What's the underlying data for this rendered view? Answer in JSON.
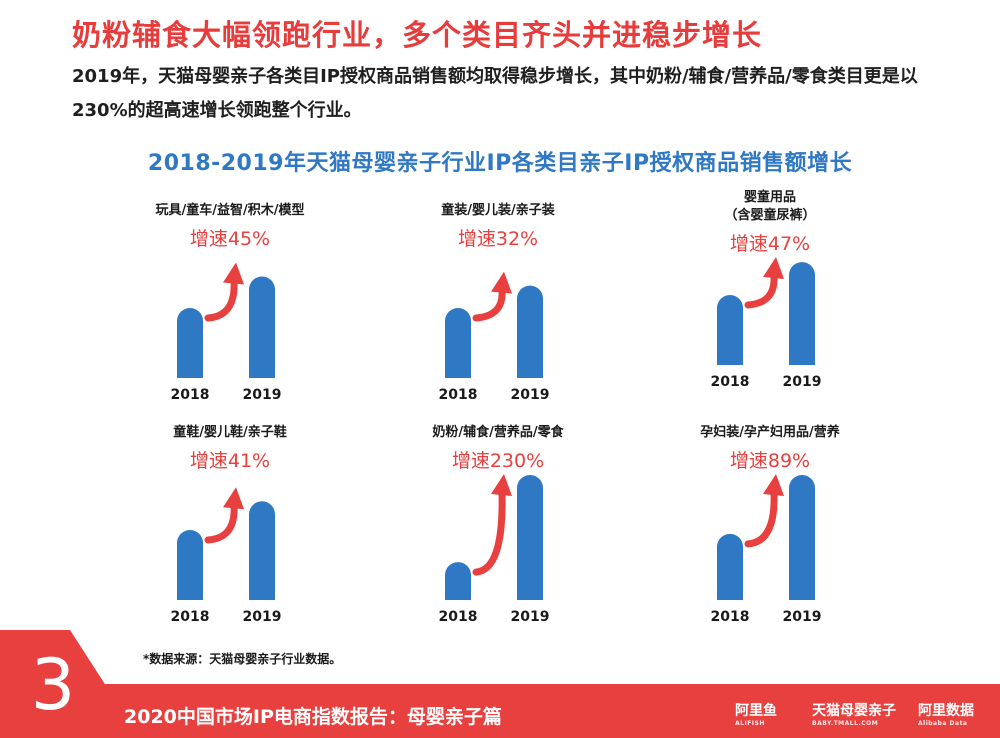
{
  "page": {
    "title": "奶粉辅食大幅领跑行业，多个类目齐头并进稳步增长",
    "intro": "2019年，天猫母婴亲子各类目IP授权商品销售额均取得稳步增长，其中奶粉/辅食/营养品/零食类目更是以230%的超高速增长领跑整个行业。",
    "source": "*数据来源：天猫母婴亲子行业数据。",
    "page_number": "3",
    "footer_text": "2020中国市场IP电商指数报告：母婴亲子篇",
    "brands": [
      {
        "name": "阿里鱼",
        "sub": "ALIFISH"
      },
      {
        "name": "天猫母婴亲子",
        "sub": "BABY.TMALL.COM"
      },
      {
        "name": "阿里数据",
        "sub": "Alibaba Data"
      }
    ],
    "colors": {
      "accent": "#e8403f",
      "bar": "#2f78c4",
      "title_blue": "#2f78c4"
    }
  },
  "chart_data": [
    {
      "type": "bar",
      "title": "2018-2019年天猫母婴亲子行业IP各类目亲子IP授权商品销售额增长",
      "panels": [
        {
          "label_lines": [
            "玩具/童车/益智/积木/模型"
          ],
          "growth_label": "增速45%",
          "growth": 0.45,
          "categories": [
            "2018",
            "2019"
          ],
          "values": [
            1,
            1.45
          ]
        },
        {
          "label_lines": [
            "童装/婴儿装/亲子装"
          ],
          "growth_label": "增速32%",
          "growth": 0.32,
          "categories": [
            "2018",
            "2019"
          ],
          "values": [
            1,
            1.32
          ]
        },
        {
          "label_lines": [
            "婴童用品",
            "（含婴童尿裤）"
          ],
          "growth_label": "增速47%",
          "growth": 0.47,
          "categories": [
            "2018",
            "2019"
          ],
          "values": [
            1,
            1.47
          ]
        },
        {
          "label_lines": [
            "童鞋/婴儿鞋/亲子鞋"
          ],
          "growth_label": "增速41%",
          "growth": 0.41,
          "categories": [
            "2018",
            "2019"
          ],
          "values": [
            1,
            1.41
          ]
        },
        {
          "label_lines": [
            "奶粉/辅食/营养品/零食"
          ],
          "growth_label": "增速230%",
          "growth": 2.3,
          "categories": [
            "2018",
            "2019"
          ],
          "values": [
            1,
            3.3
          ]
        },
        {
          "label_lines": [
            "孕妇装/孕产妇用品/营养"
          ],
          "growth_label": "增速89%",
          "growth": 0.89,
          "categories": [
            "2018",
            "2019"
          ],
          "values": [
            1,
            1.89
          ]
        }
      ]
    }
  ]
}
